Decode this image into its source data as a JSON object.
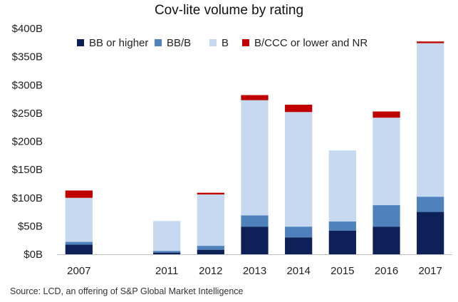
{
  "chart_data": {
    "type": "bar",
    "stacked": true,
    "title": "Cov-lite volume by rating",
    "categories": [
      "2007",
      "2011",
      "2012",
      "2013",
      "2014",
      "2015",
      "2016",
      "2017"
    ],
    "gap_categories_after": [
      "2007"
    ],
    "series": [
      {
        "name": "BB or higher",
        "color": "#0d2057",
        "values": [
          17,
          3,
          8,
          49,
          30,
          42,
          49,
          75
        ]
      },
      {
        "name": "BB/B",
        "color": "#4f81bd",
        "values": [
          5,
          3,
          7,
          20,
          19,
          16,
          38,
          27
        ]
      },
      {
        "name": "B",
        "color": "#c6d9f0",
        "values": [
          78,
          53,
          91,
          204,
          203,
          126,
          155,
          272
        ]
      },
      {
        "name": "B/CCC or lower and NR",
        "color": "#c00000",
        "values": [
          13,
          0,
          3,
          9,
          13,
          0,
          11,
          3
        ]
      }
    ],
    "y_ticks": [
      "$0B",
      "$50B",
      "$100B",
      "$150B",
      "$200B",
      "$250B",
      "$300B",
      "$350B",
      "$400B"
    ],
    "ylim": [
      0,
      400
    ],
    "legend_position": "top-left",
    "grid": false
  },
  "source_note": "Source: LCD, an offering of S&P Global Market Intelligence"
}
